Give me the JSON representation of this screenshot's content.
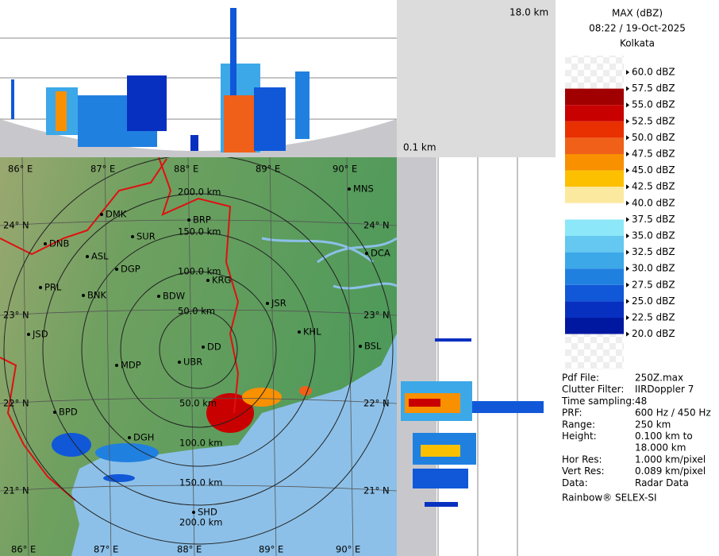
{
  "panels": {
    "top_height_label": "18.0 km",
    "bottom_height_label": "0.1 km"
  },
  "header": {
    "product": "MAX (dBZ)",
    "datetime": "08:22 / 19-Oct-2025",
    "site": "Kolkata"
  },
  "legend": {
    "labels": [
      "60.0 dBZ",
      "57.5 dBZ",
      "55.0 dBZ",
      "52.5 dBZ",
      "50.0 dBZ",
      "47.5 dBZ",
      "45.0 dBZ",
      "42.5 dBZ",
      "40.0 dBZ",
      "37.5 dBZ",
      "35.0 dBZ",
      "32.5 dBZ",
      "30.0 dBZ",
      "27.5 dBZ",
      "25.0 dBZ",
      "22.5 dBZ",
      "20.0 dBZ"
    ],
    "band_colors": [
      "#a00000",
      "#c80000",
      "#e83000",
      "#f06018",
      "#f89000",
      "#fcc000",
      "#fce9a0",
      "#ffffff",
      "#8ce8f8",
      "#64c8f0",
      "#3ca8e8",
      "#2080e0",
      "#1058d8",
      "#0830c0",
      "#0018a0"
    ]
  },
  "info": [
    {
      "label": "Pdf File:",
      "values": [
        "250Z.max"
      ]
    },
    {
      "label": "Clutter Filter:",
      "values": [
        "IIRDoppler 7"
      ]
    },
    {
      "label": "Time sampling:",
      "values": [
        "48"
      ]
    },
    {
      "label": "PRF:",
      "values": [
        "600 Hz / 450 Hz"
      ]
    },
    {
      "label": "Range:",
      "values": [
        "250 km"
      ]
    },
    {
      "label": "Height:",
      "values": [
        "0.100 km to",
        "18.000 km"
      ]
    },
    {
      "label": "Hor Res:",
      "values": [
        "1.000 km/pixel"
      ]
    },
    {
      "label": "Vert Res:",
      "values": [
        "0.089 km/pixel"
      ]
    },
    {
      "label": "Data:",
      "values": [
        "Radar Data"
      ]
    }
  ],
  "footer": "Rainbow® SELEX-SI",
  "map": {
    "longitudes": [
      "86° E",
      "87° E",
      "88° E",
      "89° E",
      "90° E"
    ],
    "latitudes": [
      "24° N",
      "23° N",
      "22° N",
      "21° N"
    ],
    "range_labels_north": [
      "200.0 km",
      "150.0 km",
      "100.0 km",
      "50.0 km"
    ],
    "range_labels_south": [
      "50.0 km",
      "100.0 km",
      "150.0 km",
      "200.0 km"
    ],
    "stations": [
      "MNS",
      "DMK",
      "BRP",
      "DNB",
      "SUR",
      "DCA",
      "ASL",
      "DGP",
      "KRG",
      "PRL",
      "BNK",
      "BDW",
      "JSR",
      "KHL",
      "JSD",
      "DD",
      "BSL",
      "MDP",
      "UBR",
      "DGH",
      "SHD",
      "BPD"
    ]
  }
}
